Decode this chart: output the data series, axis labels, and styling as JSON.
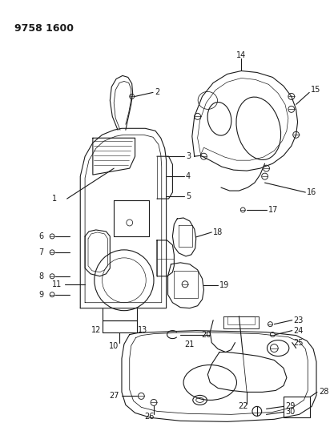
{
  "title": "9758 1600",
  "bg_color": "#ffffff",
  "line_color": "#1a1a1a",
  "title_fontsize": 9,
  "label_fontsize": 7,
  "fig_width": 4.12,
  "fig_height": 5.33,
  "dpi": 100
}
